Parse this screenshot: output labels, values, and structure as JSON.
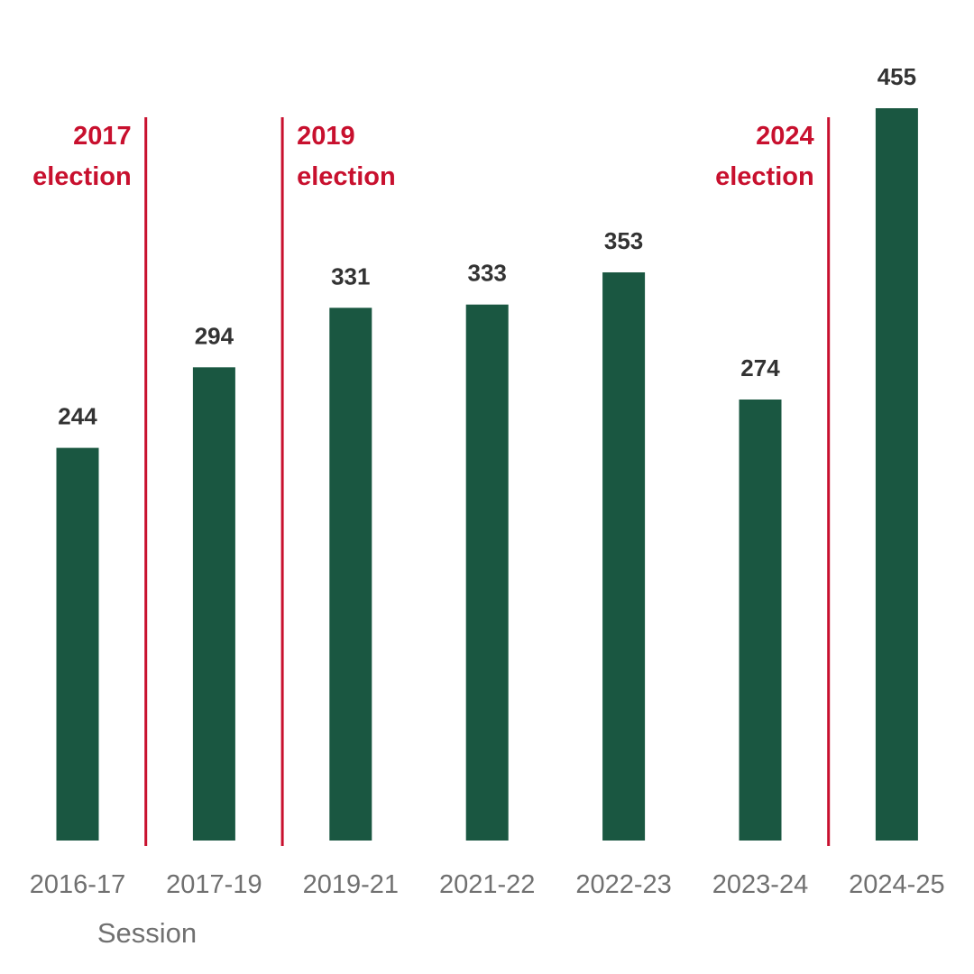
{
  "chart_data": {
    "type": "bar",
    "categories": [
      "2016-17",
      "2017-19",
      "2019-21",
      "2021-22",
      "2022-23",
      "2023-24",
      "2024-25"
    ],
    "values": [
      244,
      294,
      331,
      333,
      353,
      274,
      455
    ],
    "xlabel": "Session",
    "ylabel": "",
    "ylim": [
      0,
      455
    ],
    "grid": false,
    "annotations": [
      {
        "after_category": "2016-17",
        "year": "2017",
        "text": "election",
        "side": "left"
      },
      {
        "after_category": "2017-19",
        "year": "2019",
        "text": "election",
        "side": "right"
      },
      {
        "after_category": "2023-24",
        "year": "2024",
        "text": "election",
        "side": "left"
      }
    ]
  },
  "colors": {
    "bar": "#1a5741",
    "election_line": "#c8102e",
    "election_text": "#c8102e",
    "value_text": "#333333",
    "tick_text": "#707070"
  }
}
